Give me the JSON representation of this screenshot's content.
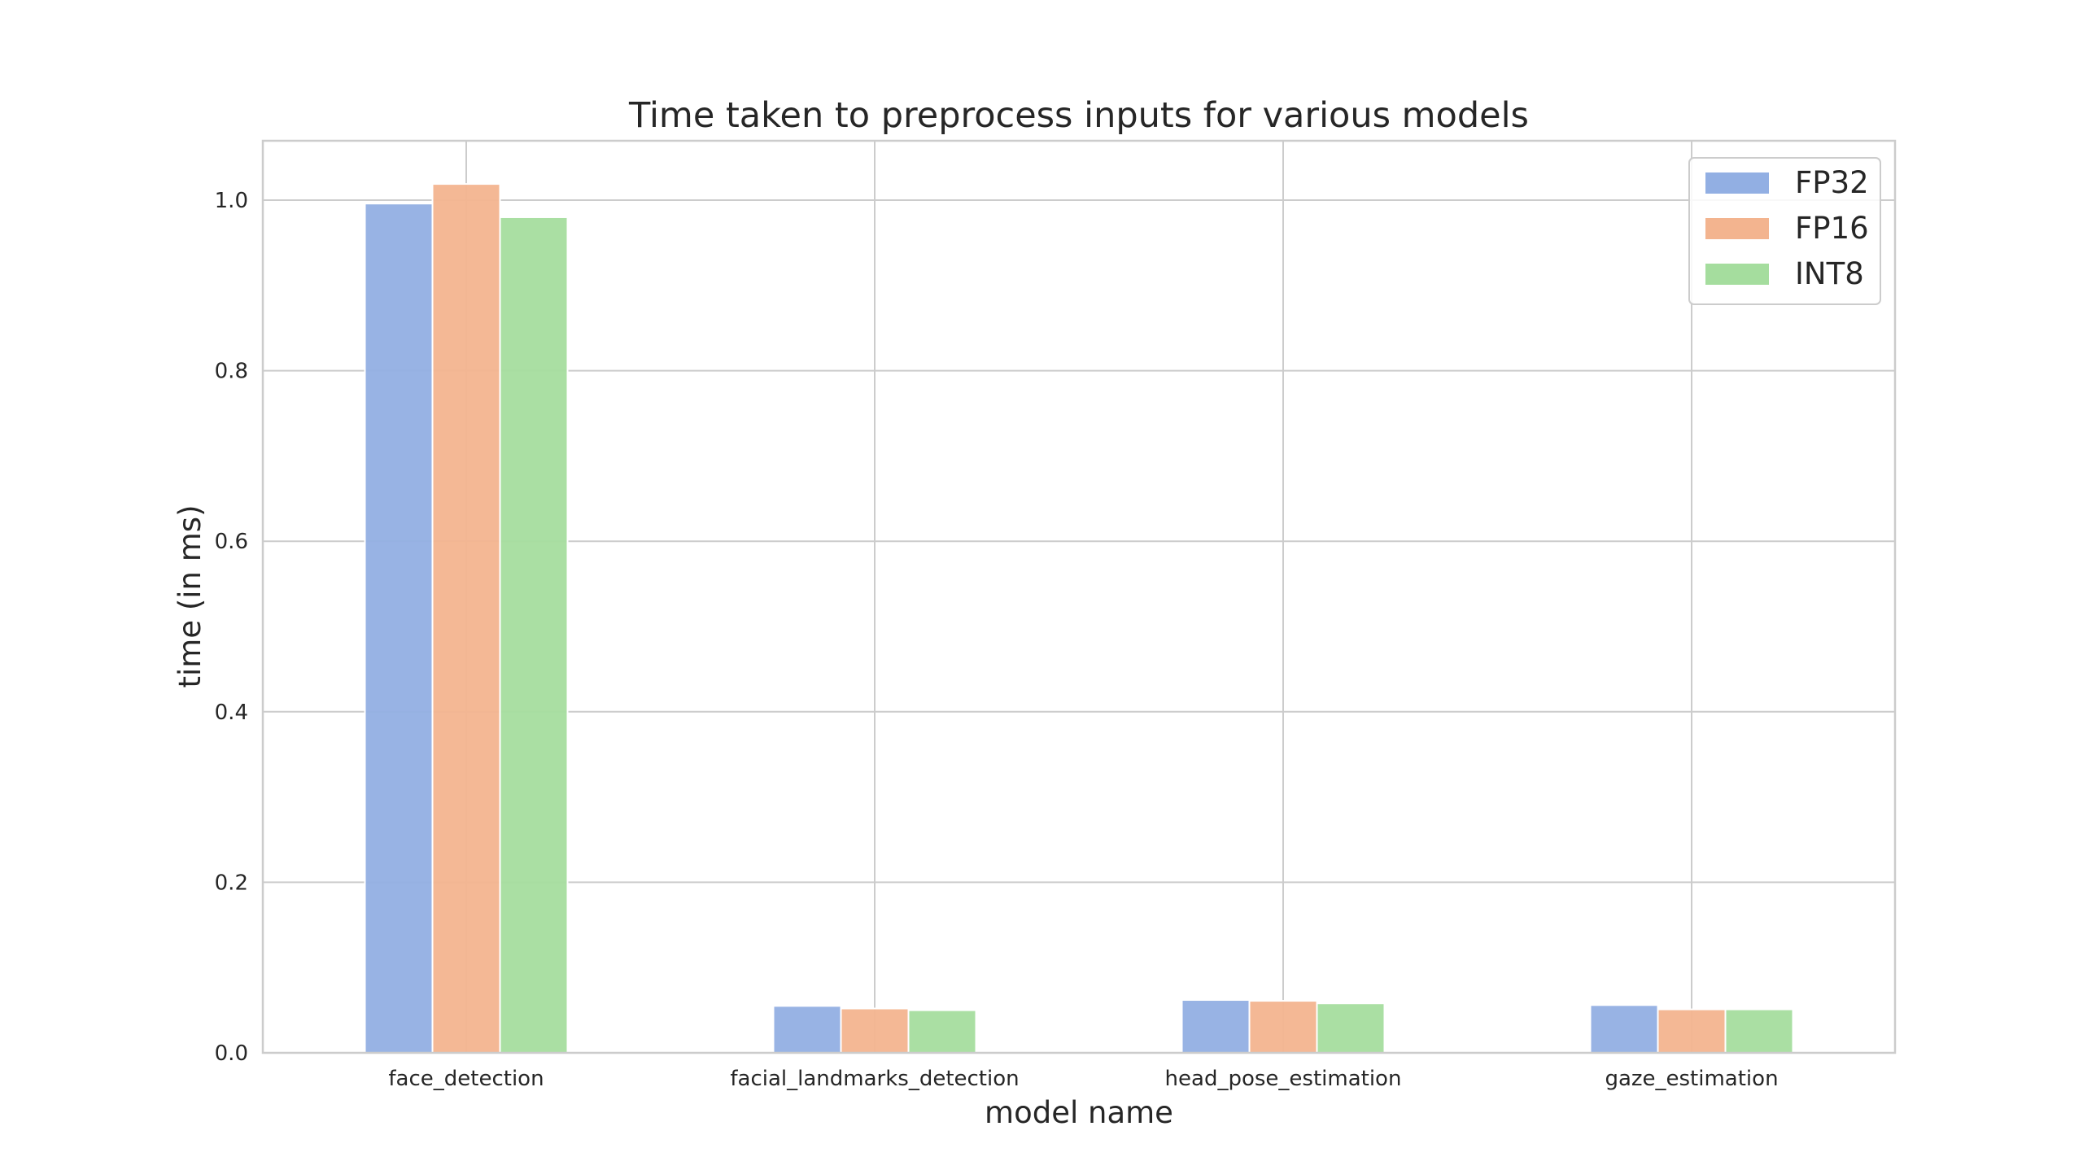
{
  "chart_data": {
    "type": "bar",
    "title": "Time taken to preprocess inputs for various models",
    "xlabel": "model name",
    "ylabel": "time (in ms)",
    "categories": [
      "face_detection",
      "facial_landmarks_detection",
      "head_pose_estimation",
      "gaze_estimation"
    ],
    "series": [
      {
        "name": "FP32",
        "color": "#92afe3",
        "values": [
          0.996,
          0.055,
          0.062,
          0.056
        ]
      },
      {
        "name": "FP16",
        "color": "#f3b48f",
        "values": [
          1.019,
          0.052,
          0.061,
          0.051
        ]
      },
      {
        "name": "INT8",
        "color": "#a5dd9e",
        "values": [
          0.98,
          0.05,
          0.058,
          0.051
        ]
      }
    ],
    "ylim": [
      0,
      1.07
    ],
    "yticks": [
      "0.0",
      "0.2",
      "0.4",
      "0.6",
      "0.8",
      "1.0"
    ],
    "grid": true,
    "legend_position": "top-right"
  }
}
